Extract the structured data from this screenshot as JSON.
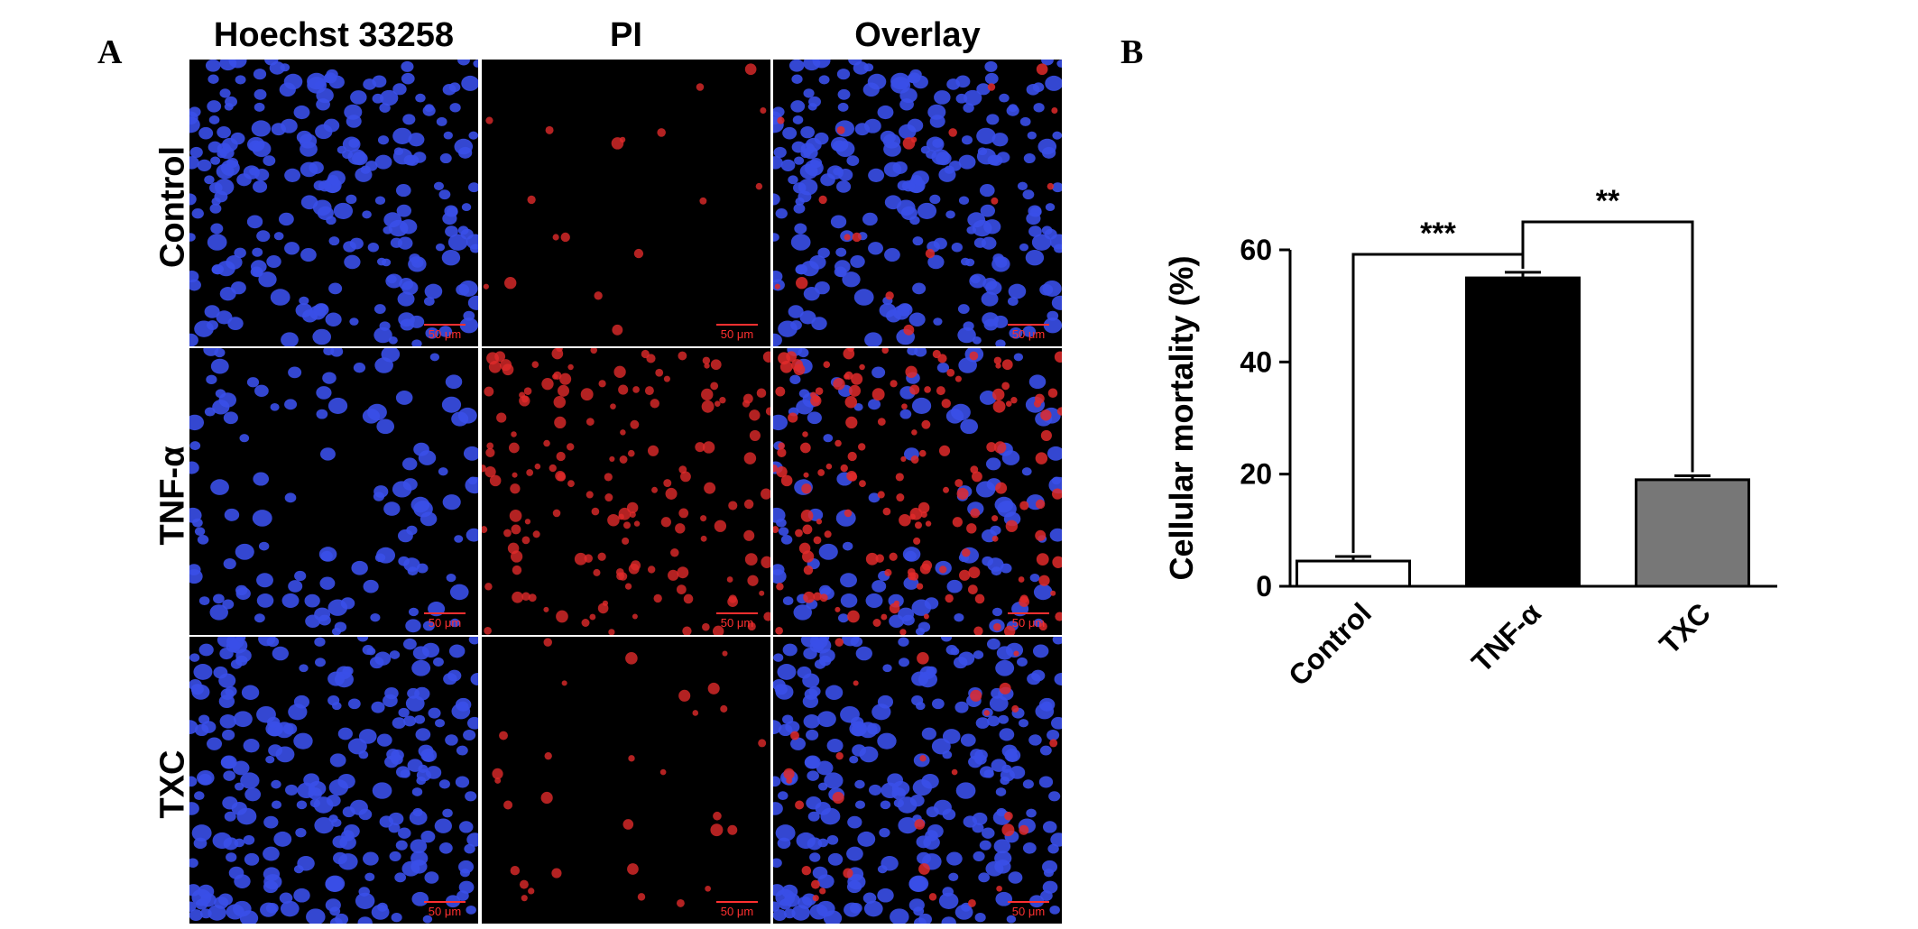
{
  "panel_a": {
    "letter": "A",
    "columns": [
      "Hoechst 33258",
      "PI",
      "Overlay"
    ],
    "rows": [
      "Control",
      "TNF-α",
      "TXC"
    ],
    "scalebar": "50 μm"
  },
  "panel_b": {
    "letter": "B"
  },
  "colors": {
    "hoechst": "#3a4fe8",
    "pi": "#e02a2a",
    "bar_control": "#ffffff",
    "bar_tnf": "#000000",
    "bar_txc": "#777777"
  },
  "chart_data": {
    "type": "bar",
    "categories": [
      "Control",
      "TNF-α",
      "TXC"
    ],
    "values": [
      4.5,
      55,
      19
    ],
    "errors": [
      0.8,
      1.0,
      0.7
    ],
    "ylabel": "Cellular mortality (%)",
    "xlabel": "",
    "title": "",
    "ylim": [
      0,
      60
    ],
    "yticks": [
      0,
      20,
      40,
      60
    ],
    "grid": false,
    "significance": [
      {
        "from": "Control",
        "to": "TNF-α",
        "label": "***"
      },
      {
        "from": "TNF-α",
        "to": "TXC",
        "label": "**"
      }
    ]
  }
}
